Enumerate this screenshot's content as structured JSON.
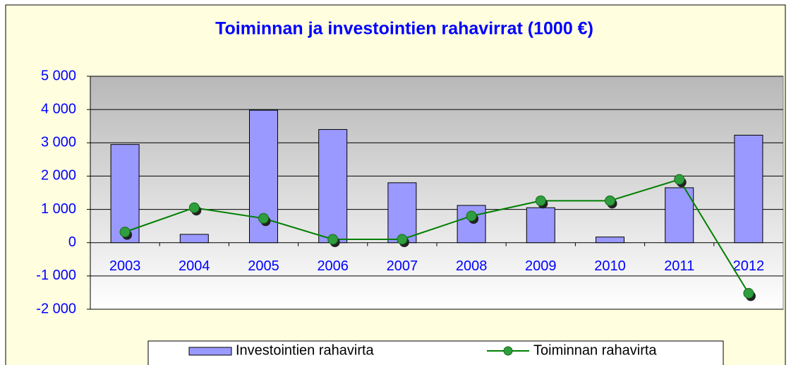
{
  "chart_data": {
    "type": "bar",
    "title": "Toiminnan ja investointien rahavirrat (1000 €)",
    "categories": [
      "2003",
      "2004",
      "2005",
      "2006",
      "2007",
      "2008",
      "2009",
      "2010",
      "2011",
      "2012"
    ],
    "series": [
      {
        "name": "Investointien rahavirta",
        "type": "bar",
        "color": "#9999ff",
        "values": [
          2950,
          250,
          3980,
          3400,
          1800,
          1120,
          1050,
          170,
          1650,
          3230
        ]
      },
      {
        "name": "Toiminnan rahavirta",
        "type": "line",
        "color": "#008000",
        "values": [
          320,
          1050,
          730,
          100,
          100,
          800,
          1260,
          1260,
          1900,
          -1520
        ]
      }
    ],
    "ylim": [
      -2000,
      5000
    ],
    "yticks": [
      {
        "value": -2000,
        "label": "-2 000"
      },
      {
        "value": -1000,
        "label": "-1 000"
      },
      0,
      {
        "value": 1000,
        "label": "1 000"
      },
      {
        "value": 2000,
        "label": "2 000"
      },
      {
        "value": 3000,
        "label": "3 000"
      },
      {
        "value": 4000,
        "label": "4 000"
      },
      {
        "value": 5000,
        "label": "5 000"
      }
    ],
    "grid": true,
    "legend": "bottom"
  }
}
